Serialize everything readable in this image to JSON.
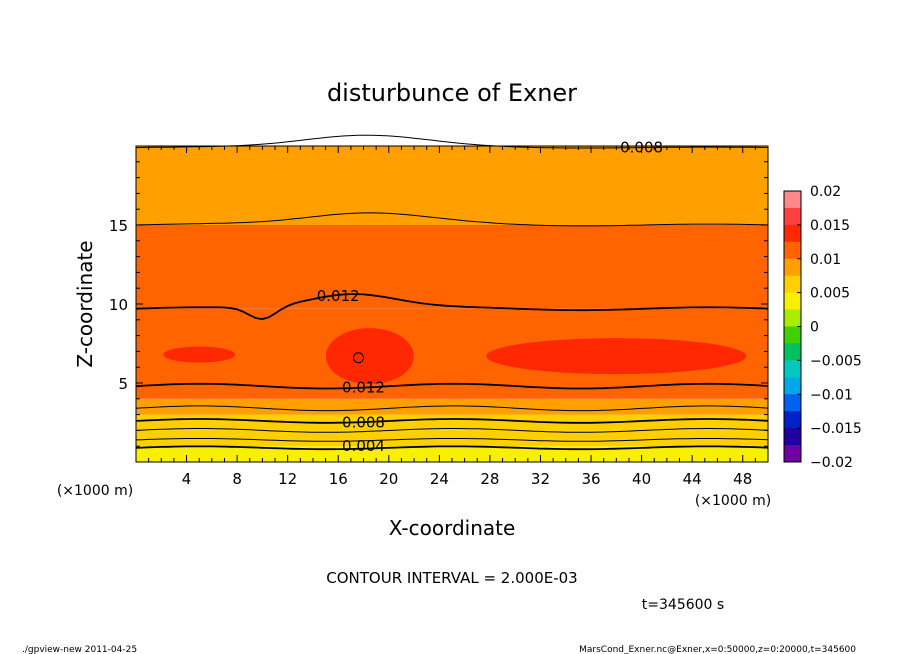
{
  "chart_data": {
    "type": "heatmap",
    "title": "disturbunce of Exner",
    "xlabel": "X-coordinate",
    "ylabel": "Z-coordinate",
    "x_unit": "(×1000 m)",
    "y_unit": "(×1000 m)",
    "xlim": [
      0,
      50
    ],
    "ylim": [
      0,
      20
    ],
    "x_ticks": [
      4,
      8,
      12,
      16,
      20,
      24,
      28,
      32,
      36,
      40,
      44,
      48
    ],
    "y_ticks": [
      5,
      10,
      15
    ],
    "x_tick_labels": [
      "4",
      "8",
      "12",
      "16",
      "20",
      "24",
      "28",
      "32",
      "36",
      "40",
      "44",
      "48"
    ],
    "y_tick_labels": [
      "5",
      "10",
      "15"
    ],
    "contour_interval_text": "CONTOUR INTERVAL = 2.000E-03",
    "time_text": "t=345600 s",
    "contour_labels": [
      {
        "text": "0.008",
        "x": 40,
        "z": 19.9
      },
      {
        "text": "0.012",
        "x": 16,
        "z": 10.5
      },
      {
        "text": "0.012",
        "x": 18,
        "z": 4.7
      },
      {
        "text": "0.008",
        "x": 18,
        "z": 2.5
      },
      {
        "text": "0.004",
        "x": 18,
        "z": 1.0
      }
    ],
    "colorbar": {
      "range": [
        -0.02,
        0.02
      ],
      "step": 0.0025,
      "tick_labels": [
        "0.02",
        "0.015",
        "0.01",
        "0.005",
        "0",
        "−0.005",
        "−0.01",
        "−0.015",
        "−0.02"
      ],
      "colors": [
        "#ff8888",
        "#ff4040",
        "#ff2800",
        "#ff6400",
        "#ffa000",
        "#ffd000",
        "#f8f000",
        "#a8ec00",
        "#40d000",
        "#00c060",
        "#00c8c0",
        "#00a8e8",
        "#0060f0",
        "#0020c8",
        "#2000a0",
        "#7000a0"
      ]
    },
    "field_levels": {
      "description_free": true,
      "z_bands": [
        {
          "z": [
            0,
            1.0
          ],
          "value": 0.0035
        },
        {
          "z": [
            1.0,
            2.0
          ],
          "value": 0.0055
        },
        {
          "z": [
            2.0,
            3.0
          ],
          "value": 0.0075
        },
        {
          "z": [
            3.0,
            4.0
          ],
          "value": 0.0095
        },
        {
          "z": [
            4.0,
            5.0
          ],
          "value": 0.0115
        },
        {
          "z": [
            5.0,
            9.7
          ],
          "value": 0.0125
        },
        {
          "z": [
            9.7,
            12.5
          ],
          "value": 0.0115
        },
        {
          "z": [
            12.5,
            15.0
          ],
          "value": 0.0105
        },
        {
          "z": [
            15.0,
            17.5
          ],
          "value": 0.0095
        },
        {
          "z": [
            17.5,
            20.0
          ],
          "value": 0.0085
        }
      ]
    }
  },
  "footer": {
    "left": "./gpview-new   2011-04-25",
    "right": "MarsCond_Exner.nc@Exner,x=0:50000,z=0:20000,t=345600"
  }
}
